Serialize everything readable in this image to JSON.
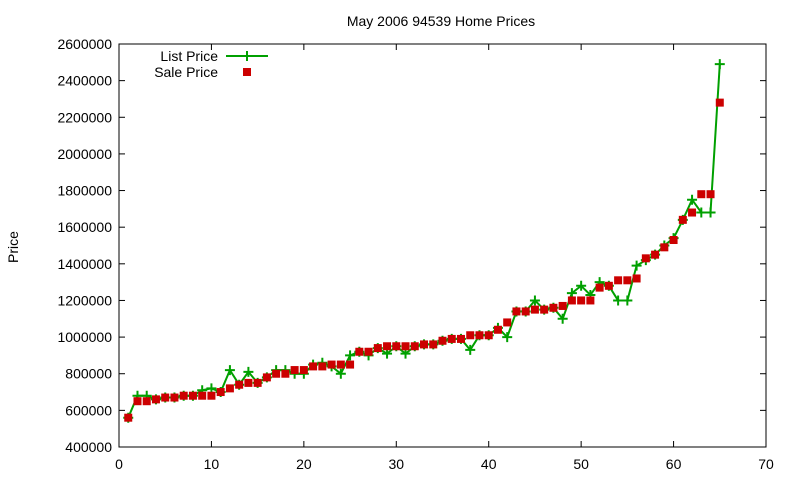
{
  "chart_data": {
    "type": "line",
    "title": "May 2006 94539 Home Prices",
    "xlabel": "",
    "ylabel": "Price",
    "xlim": [
      0,
      70
    ],
    "ylim": [
      400000,
      2600000
    ],
    "x_ticks": [
      "0",
      "10",
      "20",
      "30",
      "40",
      "50",
      "60",
      "70"
    ],
    "y_ticks": [
      "400000",
      "600000",
      "800000",
      "1000000",
      "1200000",
      "1400000",
      "1600000",
      "1800000",
      "2000000",
      "2200000",
      "2400000",
      "2600000"
    ],
    "grid": false,
    "legend": "top-left",
    "series": [
      {
        "name": "List Price",
        "type": "line-with-plus-markers",
        "color": "#00a000",
        "x": [
          1,
          2,
          3,
          4,
          5,
          6,
          7,
          8,
          9,
          10,
          11,
          12,
          13,
          14,
          15,
          16,
          17,
          18,
          19,
          20,
          21,
          22,
          23,
          24,
          25,
          26,
          27,
          28,
          29,
          30,
          31,
          32,
          33,
          34,
          35,
          36,
          37,
          38,
          39,
          40,
          41,
          42,
          43,
          44,
          45,
          46,
          47,
          48,
          49,
          50,
          51,
          52,
          53,
          54,
          55,
          56,
          57,
          58,
          59,
          60,
          61,
          62,
          63,
          64,
          65
        ],
        "values": [
          560000,
          680000,
          680000,
          660000,
          670000,
          670000,
          680000,
          680000,
          710000,
          720000,
          700000,
          820000,
          740000,
          810000,
          750000,
          780000,
          820000,
          820000,
          800000,
          800000,
          850000,
          860000,
          840000,
          800000,
          900000,
          920000,
          900000,
          940000,
          910000,
          950000,
          910000,
          950000,
          960000,
          960000,
          980000,
          990000,
          990000,
          930000,
          1010000,
          1010000,
          1050000,
          1000000,
          1140000,
          1140000,
          1200000,
          1150000,
          1160000,
          1100000,
          1240000,
          1280000,
          1230000,
          1300000,
          1280000,
          1200000,
          1200000,
          1390000,
          1420000,
          1450000,
          1500000,
          1540000,
          1640000,
          1750000,
          1680000,
          1680000,
          2490000
        ]
      },
      {
        "name": "Sale Price",
        "type": "scatter-square",
        "color": "#cc0000",
        "x": [
          1,
          2,
          3,
          4,
          5,
          6,
          7,
          8,
          9,
          10,
          11,
          12,
          13,
          14,
          15,
          16,
          17,
          18,
          19,
          20,
          21,
          22,
          23,
          24,
          25,
          26,
          27,
          28,
          29,
          30,
          31,
          32,
          33,
          34,
          35,
          36,
          37,
          38,
          39,
          40,
          41,
          42,
          43,
          44,
          45,
          46,
          47,
          48,
          49,
          50,
          51,
          52,
          53,
          54,
          55,
          56,
          57,
          58,
          59,
          60,
          61,
          62,
          63,
          64,
          65
        ],
        "values": [
          560000,
          650000,
          650000,
          660000,
          670000,
          670000,
          680000,
          680000,
          680000,
          680000,
          700000,
          720000,
          740000,
          750000,
          750000,
          780000,
          800000,
          800000,
          820000,
          820000,
          840000,
          840000,
          850000,
          850000,
          850000,
          920000,
          920000,
          940000,
          950000,
          950000,
          950000,
          950000,
          960000,
          960000,
          980000,
          990000,
          990000,
          1010000,
          1010000,
          1010000,
          1040000,
          1080000,
          1140000,
          1140000,
          1150000,
          1150000,
          1160000,
          1170000,
          1200000,
          1200000,
          1200000,
          1270000,
          1280000,
          1310000,
          1310000,
          1320000,
          1430000,
          1450000,
          1490000,
          1530000,
          1640000,
          1680000,
          1780000,
          1780000,
          2280000
        ]
      }
    ]
  }
}
